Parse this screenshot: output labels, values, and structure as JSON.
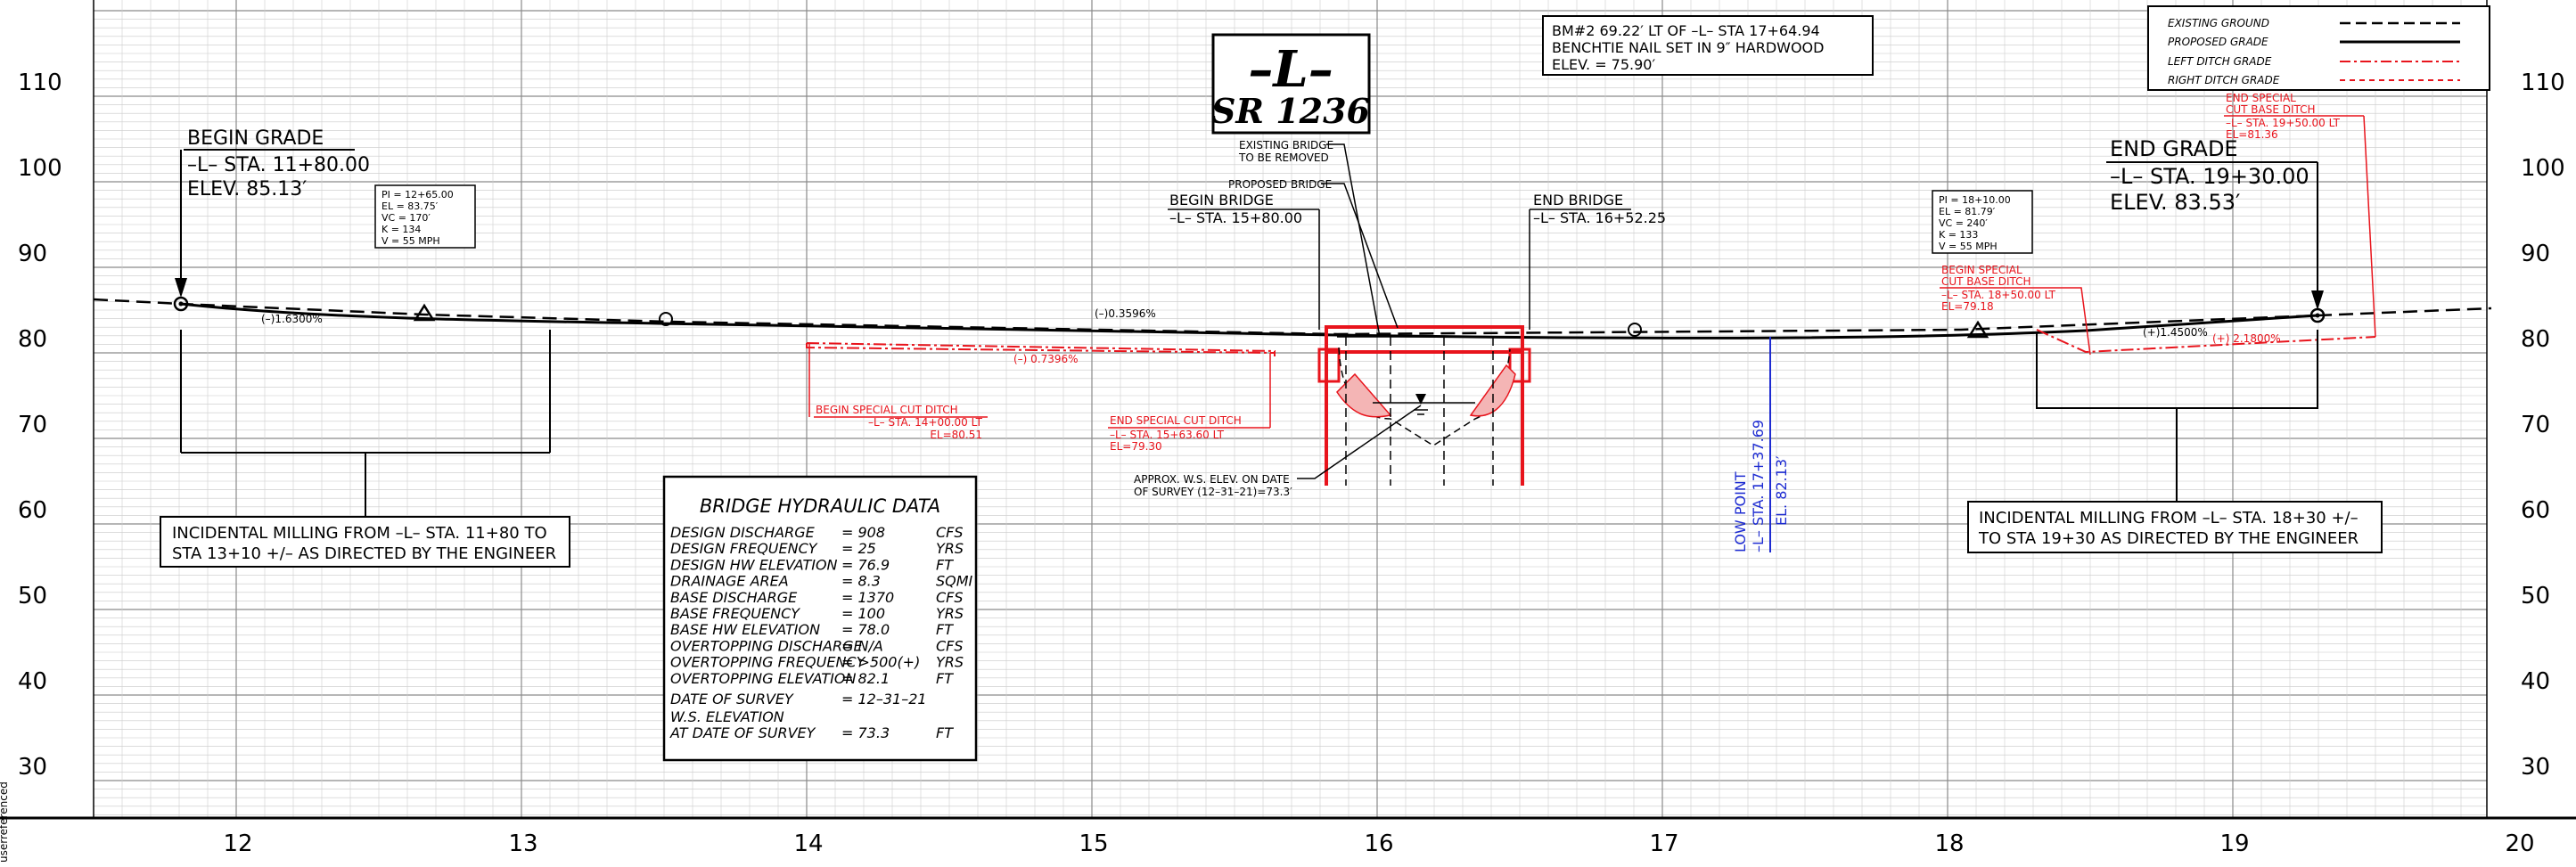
{
  "axes": {
    "elevations": [
      "110",
      "100",
      "90",
      "80",
      "70",
      "60",
      "50",
      "40",
      "30"
    ],
    "stations": [
      "12",
      "13",
      "14",
      "15",
      "16",
      "17",
      "18",
      "19",
      "20"
    ]
  },
  "legend": {
    "items": [
      "EXISTING GROUND",
      "PROPOSED GRADE",
      "LEFT DITCH GRADE",
      "RIGHT DITCH GRADE"
    ]
  },
  "title_box": {
    "line1": "–L–",
    "line2": "SR  1236"
  },
  "benchmark": {
    "line1": "BM#2  69.22′ LT OF  –L–  STA  17+64.94",
    "line2": "BENCHTIE NAIL SET IN  9″ HARDWOOD",
    "line3": "ELEV.  =    75.90′"
  },
  "begin_grade": {
    "title": "BEGIN   GRADE",
    "station": "–L–  STA.  11+80.00",
    "elev": "ELEV.  85.13′"
  },
  "end_grade": {
    "title": "END   GRADE",
    "station": "–L–  STA.  19+30.00",
    "elev": "ELEV.  83.53′"
  },
  "vc_left": [
    "PI =   12+65.00",
    "EL  =    83.75′",
    "VC  =    170′",
    "K   =    134",
    "V   =    55  MPH"
  ],
  "vc_right": [
    "PI =   18+10.00",
    "EL  =    81.79′",
    "VC  =    240′",
    "K   =    133",
    "V   =    55  MPH"
  ],
  "grades": {
    "g1": "(–)1.6300%",
    "g2": "(–)0.3596%",
    "g3": "(+)1.4500%",
    "g4": "(+) 2.1800%",
    "g5": "(–) 0.7396%"
  },
  "bridge": {
    "existing": [
      "EXISTING  BRIDGE",
      "TO  BE  REMOVED"
    ],
    "proposed": "PROPOSED  BRIDGE",
    "begin_title": "BEGIN   BRIDGE",
    "begin_station": "–L–  STA. 15+80.00",
    "end_title": "END   BRIDGE",
    "end_station": "–L–  STA. 16+52.25",
    "ws_line1": "APPROX. W.S. ELEV. ON  DATE",
    "ws_line2": "OF SURVEY  (12–31–21)=73.3′"
  },
  "ditches": {
    "begin_cut": [
      "BEGIN   SPECIAL  CUT  DITCH",
      "–L–  STA.  14+00.00  LT",
      "EL=80.51"
    ],
    "end_cut": [
      "END   SPECIAL  CUT  DITCH",
      "–L–  STA.  15+63.60  LT",
      "EL=79.30"
    ],
    "begin_base": [
      "BEGIN   SPECIAL",
      "CUT  BASE  DITCH",
      "–L–  STA.  18+50.00  LT",
      "EL=79.18"
    ],
    "end_base": [
      "END   SPECIAL",
      "CUT  BASE  DITCH",
      "–L–  STA.  19+50.00  LT",
      "EL=81.36"
    ]
  },
  "low_point": {
    "line1": "LOW   POINT",
    "line2": "–L–  STA.  17+37.69",
    "line3": "EL.  82.13′"
  },
  "milling_left": {
    "line1": "INCIDENTAL  MILLING  FROM  –L–  STA.  11+80  TO",
    "line2": "STA  13+10  +/–  AS  DIRECTED  BY  THE  ENGINEER"
  },
  "milling_right": {
    "line1": "INCIDENTAL  MILLING  FROM   –L–  STA.  18+30  +/–",
    "line2": "TO   STA  19+30  AS  DIRECTED  BY  THE  ENGINEER"
  },
  "hydraulic": {
    "title": "BRIDGE  HYDRAULIC  DATA",
    "rows": [
      [
        "DESIGN  DISCHARGE",
        "=  908",
        "CFS"
      ],
      [
        "DESIGN  FREQUENCY",
        "=  25",
        "YRS"
      ],
      [
        "DESIGN  HW  ELEVATION",
        "=  76.9",
        "FT"
      ],
      [
        "DRAINAGE  AREA",
        "=  8.3",
        "SQMI"
      ],
      [
        "BASE  DISCHARGE",
        "=  1370",
        "CFS"
      ],
      [
        "BASE  FREQUENCY",
        "=  100",
        "YRS"
      ],
      [
        "BASE  HW  ELEVATION",
        "=  78.0",
        "FT"
      ],
      [
        "OVERTOPPING  DISCHARGE",
        "=  N/A",
        "CFS"
      ],
      [
        "OVERTOPPING  FREQUENCY",
        "=  >500(+)",
        "YRS"
      ],
      [
        "OVERTOPPING  ELEVATION",
        "=  82.1",
        "FT"
      ]
    ],
    "survey_date": [
      "DATE  OF  SURVEY",
      "=  12–31–21"
    ],
    "ws_label1": "W.S. ELEVATION",
    "ws_label2": "AT  DATE  OF  SURVEY",
    "ws_value": "=  73.3",
    "ws_unit": "FT"
  },
  "side_text": "userreferenced",
  "colors": {
    "red": "#e8141c",
    "blue": "#1d2bd1",
    "line": "#000000",
    "grid": "#9a9a9a"
  }
}
